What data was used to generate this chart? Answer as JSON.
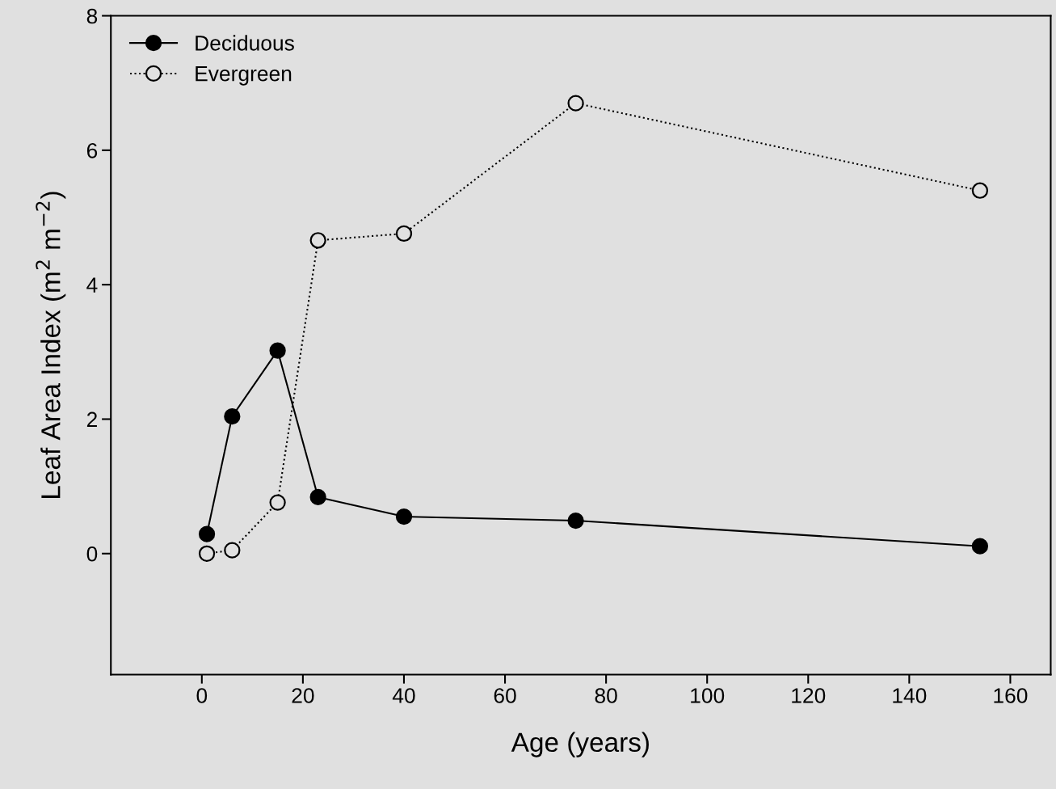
{
  "chart_data": {
    "type": "line",
    "xlabel": "Age (years)",
    "ylabel": "Leaf Area Index (m$^{2}$ m$^{−2}$)",
    "x": [
      1,
      6,
      15,
      23,
      40,
      74,
      154
    ],
    "series": [
      {
        "name": "Deciduous",
        "color": "#000000",
        "values": [
          0.29,
          2.04,
          3.02,
          0.84,
          0.55,
          0.49,
          0.11
        ],
        "marker": "circle",
        "line_style": "solid"
      },
      {
        "name": "Evergreen",
        "color": "#000000",
        "values": [
          0.0,
          0.05,
          0.76,
          4.66,
          4.76,
          6.7,
          5.4
        ],
        "marker": "circle",
        "line_style": "dotted"
      }
    ],
    "xlim": [
      -18,
      168
    ],
    "ylim": [
      -1.8,
      8
    ],
    "xticks": [
      0,
      20,
      40,
      60,
      80,
      100,
      120,
      140,
      160
    ],
    "yticks": [
      0,
      2,
      4,
      6,
      8
    ],
    "grid": false,
    "legend": "top left"
  }
}
